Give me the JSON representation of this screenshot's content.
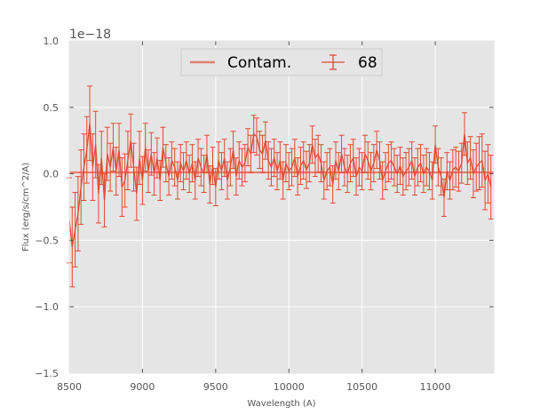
{
  "chart_data": {
    "type": "line",
    "title": "",
    "xlabel": "Wavelength (A)",
    "ylabel": "Flux (erg/s/cm^2/A)",
    "xlim": [
      8500,
      11400
    ],
    "ylim": [
      -1.5,
      1.0
    ],
    "y_offset_text": "1e−18",
    "y_multiplier": 1e-18,
    "x_ticks": [
      8500,
      9000,
      9500,
      10000,
      10500,
      11000
    ],
    "x_tick_labels": [
      "8500",
      "9000",
      "9500",
      "10000",
      "10500",
      "11000"
    ],
    "y_ticks": [
      -1.5,
      -1.0,
      -0.5,
      0.0,
      0.5,
      1.0
    ],
    "y_tick_labels": [
      "−1.5",
      "−1.0",
      "−0.5",
      "0.0",
      "0.5",
      "1.0"
    ],
    "grid": true,
    "legend_position": "top-center",
    "colors": {
      "background": "#e5e5e5",
      "grid": "#ffffff",
      "series": "#e24a33"
    },
    "series": [
      {
        "name": "Contam.",
        "kind": "line",
        "color": "#e24a33",
        "x": [
          8500,
          11400
        ],
        "y": [
          0.01,
          0.01
        ]
      },
      {
        "name": "68",
        "kind": "errorbar",
        "color": "#e24a33",
        "x": [
          8500,
          8520,
          8540,
          8560,
          8580,
          8600,
          8620,
          8640,
          8660,
          8680,
          8700,
          8720,
          8740,
          8760,
          8780,
          8800,
          8820,
          8840,
          8860,
          8880,
          8900,
          8920,
          8940,
          8960,
          8980,
          9000,
          9020,
          9040,
          9060,
          9080,
          9100,
          9120,
          9140,
          9160,
          9180,
          9200,
          9220,
          9240,
          9260,
          9280,
          9300,
          9320,
          9340,
          9360,
          9380,
          9400,
          9420,
          9440,
          9460,
          9480,
          9500,
          9520,
          9540,
          9560,
          9580,
          9600,
          9620,
          9640,
          9660,
          9680,
          9700,
          9720,
          9740,
          9760,
          9780,
          9800,
          9820,
          9840,
          9860,
          9880,
          9900,
          9920,
          9940,
          9960,
          9980,
          10000,
          10020,
          10040,
          10060,
          10080,
          10100,
          10120,
          10140,
          10160,
          10180,
          10200,
          10220,
          10240,
          10260,
          10280,
          10300,
          10320,
          10340,
          10360,
          10380,
          10400,
          10420,
          10440,
          10460,
          10480,
          10500,
          10520,
          10540,
          10560,
          10580,
          10600,
          10620,
          10640,
          10660,
          10680,
          10700,
          10720,
          10740,
          10760,
          10780,
          10800,
          10820,
          10840,
          10860,
          10880,
          10900,
          10920,
          10940,
          10960,
          10980,
          11000,
          11020,
          11040,
          11060,
          11080,
          11100,
          11120,
          11140,
          11160,
          11180,
          11200,
          11220,
          11240,
          11260,
          11280,
          11300,
          11320,
          11340,
          11360,
          11380
        ],
        "y": [
          -0.35,
          -0.55,
          -0.42,
          -0.3,
          -0.1,
          0.05,
          0.18,
          0.38,
          0.05,
          0.22,
          -0.15,
          0.12,
          -0.2,
          0.15,
          0.05,
          0.2,
          0.02,
          0.18,
          -0.1,
          -0.05,
          0.1,
          0.25,
          0.05,
          -0.15,
          0.12,
          -0.05,
          0.2,
          0.02,
          0.15,
          0.0,
          0.12,
          -0.05,
          0.2,
          0.08,
          -0.02,
          0.1,
          0.05,
          -0.05,
          0.08,
          0.02,
          0.1,
          0.0,
          0.08,
          -0.05,
          0.12,
          0.05,
          0.0,
          0.15,
          -0.08,
          0.06,
          -0.1,
          0.1,
          0.02,
          0.12,
          -0.05,
          0.05,
          0.18,
          -0.02,
          0.1,
          0.05,
          0.08,
          0.2,
          0.15,
          0.3,
          0.28,
          0.18,
          0.15,
          0.25,
          0.1,
          0.05,
          0.12,
          0.02,
          0.1,
          -0.05,
          0.08,
          0.02,
          0.05,
          0.12,
          -0.02,
          0.06,
          0.1,
          0.03,
          0.08,
          0.22,
          0.12,
          0.15,
          0.08,
          -0.05,
          0.02,
          0.05,
          -0.08,
          0.1,
          0.02,
          0.15,
          0.05,
          0.0,
          0.08,
          0.12,
          -0.02,
          0.05,
          0.02,
          0.15,
          0.1,
          0.02,
          0.08,
          0.18,
          0.1,
          -0.05,
          0.02,
          0.08,
          0.1,
          0.05,
          0.0,
          0.06,
          -0.02,
          0.02,
          0.05,
          0.1,
          -0.02,
          0.05,
          0.08,
          0.0,
          0.05,
          0.02,
          -0.05,
          0.22,
          0.05,
          -0.02,
          -0.18,
          0.02,
          -0.05,
          0.03,
          0.05,
          0.02,
          0.08,
          0.3,
          0.08,
          0.12,
          0.0,
          0.05,
          0.08,
          0.1,
          -0.05,
          0.0,
          -0.1
        ],
        "yerr": [
          0.32,
          0.3,
          0.28,
          0.28,
          0.28,
          0.25,
          0.25,
          0.28,
          0.25,
          0.25,
          0.22,
          0.2,
          0.2,
          0.2,
          0.18,
          0.18,
          0.18,
          0.2,
          0.22,
          0.2,
          0.22,
          0.2,
          0.18,
          0.2,
          0.2,
          0.18,
          0.18,
          0.16,
          0.16,
          0.16,
          0.15,
          0.15,
          0.15,
          0.14,
          0.14,
          0.14,
          0.14,
          0.14,
          0.14,
          0.14,
          0.14,
          0.14,
          0.14,
          0.14,
          0.14,
          0.14,
          0.14,
          0.14,
          0.14,
          0.14,
          0.14,
          0.14,
          0.14,
          0.14,
          0.14,
          0.14,
          0.14,
          0.14,
          0.14,
          0.14,
          0.14,
          0.14,
          0.14,
          0.14,
          0.14,
          0.14,
          0.14,
          0.14,
          0.14,
          0.14,
          0.14,
          0.14,
          0.14,
          0.14,
          0.14,
          0.14,
          0.14,
          0.14,
          0.14,
          0.14,
          0.14,
          0.14,
          0.14,
          0.14,
          0.14,
          0.14,
          0.14,
          0.14,
          0.14,
          0.14,
          0.14,
          0.14,
          0.14,
          0.14,
          0.14,
          0.14,
          0.14,
          0.14,
          0.14,
          0.14,
          0.14,
          0.14,
          0.14,
          0.14,
          0.14,
          0.14,
          0.14,
          0.14,
          0.14,
          0.14,
          0.14,
          0.14,
          0.14,
          0.14,
          0.14,
          0.14,
          0.14,
          0.14,
          0.14,
          0.14,
          0.14,
          0.14,
          0.14,
          0.14,
          0.14,
          0.14,
          0.14,
          0.14,
          0.14,
          0.14,
          0.14,
          0.15,
          0.15,
          0.15,
          0.15,
          0.16,
          0.16,
          0.16,
          0.18,
          0.18,
          0.2,
          0.2,
          0.22,
          0.22,
          0.24
        ]
      }
    ]
  }
}
